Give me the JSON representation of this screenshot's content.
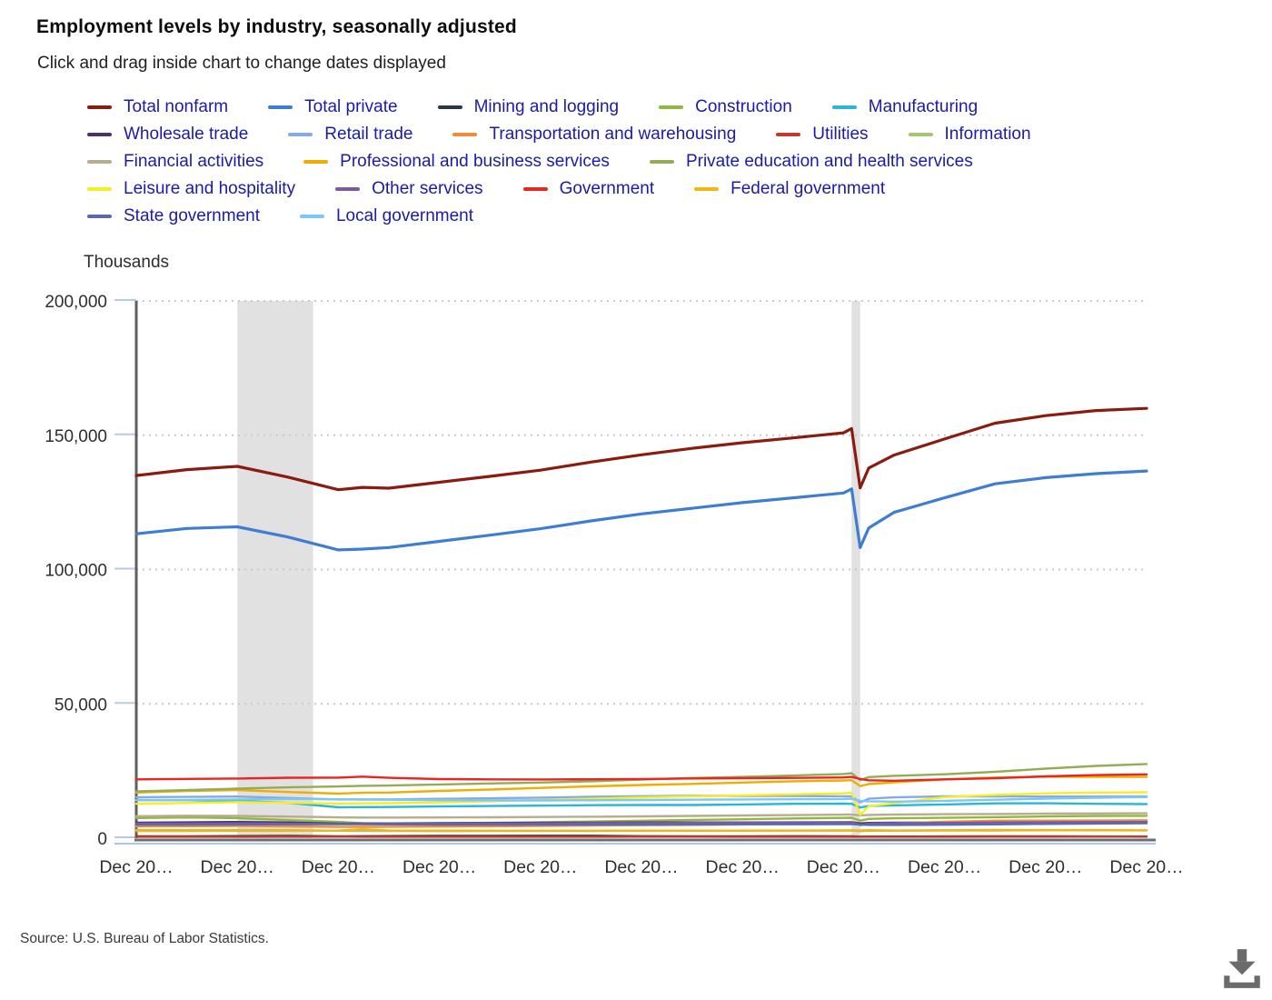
{
  "header": {
    "title": "Employment levels by industry, seasonally adjusted",
    "subtitle": "Click and drag inside chart to change dates displayed"
  },
  "footer": {
    "source": "Source: U.S. Bureau of Labor Statistics."
  },
  "icons": {
    "download": "download-arrow-with-tray"
  },
  "chart_data": {
    "type": "line",
    "unit": "Thousands",
    "legend_text_color": "#1b1ba6",
    "grid": "dotted-horizontal",
    "legend_position": "top-left",
    "xlim": [
      2005.92,
      2025.92
    ],
    "ylim": [
      0,
      200000
    ],
    "yticks": [
      {
        "v": 0,
        "label": "0"
      },
      {
        "v": 50000,
        "label": "50,000"
      },
      {
        "v": 100000,
        "label": "100,000"
      },
      {
        "v": 150000,
        "label": "150,000"
      },
      {
        "v": 200000,
        "label": "200,000"
      }
    ],
    "xtick_labels": [
      "Dec 20…",
      "Dec 20…",
      "Dec 20…",
      "Dec 20…",
      "Dec 20…",
      "Dec 20…",
      "Dec 20…",
      "Dec 20…",
      "Dec 20…",
      "Dec 20…",
      "Dec 20…"
    ],
    "recessions": [
      [
        2007.92,
        2009.42
      ],
      [
        2020.08,
        2020.25
      ]
    ],
    "recession_band_color": "#e1e1e1",
    "x": [
      2005.92,
      2006.92,
      2007.92,
      2008.92,
      2009.92,
      2010.4,
      2010.92,
      2011.92,
      2012.92,
      2013.92,
      2014.92,
      2015.92,
      2016.92,
      2017.92,
      2018.92,
      2019.92,
      2020.08,
      2020.25,
      2020.42,
      2020.92,
      2021.92,
      2022.92,
      2023.92,
      2024.92,
      2025.92
    ],
    "series": [
      {
        "name": "Total nonfarm",
        "color": "#8b1a10",
        "width": 3.2,
        "values": [
          135000,
          137200,
          138400,
          134400,
          129700,
          130600,
          130300,
          132500,
          134700,
          137000,
          140000,
          142700,
          145100,
          147200,
          149000,
          150900,
          152500,
          130400,
          137800,
          142600,
          148600,
          154500,
          157300,
          159200,
          160000
        ]
      },
      {
        "name": "Total private",
        "color": "#3e7dd1",
        "width": 3.2,
        "values": [
          113300,
          115300,
          115900,
          112100,
          107300,
          107600,
          108200,
          110500,
          112800,
          115200,
          118100,
          120700,
          122800,
          124900,
          126700,
          128500,
          130000,
          108200,
          115500,
          121300,
          126700,
          131900,
          134200,
          135700,
          136700
        ]
      },
      {
        "name": "Mining and logging",
        "color": "#2a3747",
        "width": 2.4,
        "values": [
          680,
          720,
          770,
          850,
          680,
          730,
          790,
          850,
          870,
          900,
          900,
          730,
          670,
          710,
          750,
          710,
          700,
          590,
          610,
          600,
          640,
          680,
          660,
          630,
          600
        ]
      },
      {
        "name": "Construction",
        "color": "#92b73e",
        "width": 2.4,
        "values": [
          7500,
          7700,
          7490,
          6750,
          6050,
          5580,
          5520,
          5620,
          5730,
          5940,
          6200,
          6500,
          6800,
          7040,
          7330,
          7540,
          7620,
          6520,
          7180,
          7400,
          7580,
          7820,
          8100,
          8300,
          8320
        ]
      },
      {
        "name": "Manufacturing",
        "color": "#29b6d8",
        "width": 2.4,
        "values": [
          14200,
          14150,
          13850,
          13180,
          11500,
          11560,
          11600,
          11800,
          11980,
          12100,
          12300,
          12350,
          12350,
          12550,
          12800,
          12850,
          12800,
          11400,
          11970,
          12200,
          12550,
          12950,
          13000,
          12800,
          12700
        ]
      },
      {
        "name": "Wholesale trade",
        "color": "#4d3263",
        "width": 2.4,
        "values": [
          5760,
          5900,
          6010,
          5850,
          5450,
          5440,
          5450,
          5540,
          5650,
          5720,
          5800,
          5840,
          5850,
          5870,
          5880,
          5900,
          5920,
          5500,
          5680,
          5750,
          5850,
          6000,
          6100,
          6150,
          6200
        ]
      },
      {
        "name": "Retail trade",
        "color": "#88a9e4",
        "width": 2.4,
        "values": [
          15250,
          15380,
          15500,
          14950,
          14400,
          14440,
          14450,
          14650,
          14850,
          15100,
          15400,
          15650,
          15800,
          15750,
          15700,
          15600,
          15600,
          13300,
          14700,
          15180,
          15600,
          15520,
          15500,
          15500,
          15520
        ]
      },
      {
        "name": "Transportation and warehousing",
        "color": "#f08c3a",
        "width": 2.4,
        "values": [
          4350,
          4470,
          4550,
          4390,
          4180,
          4230,
          4260,
          4340,
          4450,
          4550,
          4750,
          4850,
          4950,
          5100,
          5350,
          5500,
          5520,
          4900,
          5100,
          5500,
          6100,
          6500,
          6520,
          6580,
          6680
        ]
      },
      {
        "name": "Utilities",
        "color": "#c03a2e",
        "width": 2.4,
        "values": [
          550,
          550,
          550,
          560,
          560,
          550,
          550,
          550,
          550,
          550,
          550,
          560,
          560,
          550,
          550,
          550,
          550,
          540,
          540,
          540,
          550,
          570,
          590,
          600,
          610
        ]
      },
      {
        "name": "Information",
        "color": "#a5c573",
        "width": 2.4,
        "values": [
          3050,
          3030,
          3030,
          2980,
          2780,
          2710,
          2670,
          2650,
          2680,
          2700,
          2740,
          2780,
          2800,
          2810,
          2840,
          2870,
          2880,
          2600,
          2750,
          2820,
          2940,
          3090,
          3020,
          2960,
          2920
        ]
      },
      {
        "name": "Financial activities",
        "color": "#b5ad8e",
        "width": 2.4,
        "values": [
          8200,
          8350,
          8300,
          8050,
          7750,
          7680,
          7670,
          7720,
          7790,
          7890,
          8000,
          8120,
          8280,
          8450,
          8580,
          8750,
          8800,
          8480,
          8680,
          8800,
          8920,
          9010,
          9140,
          9200,
          9260
        ]
      },
      {
        "name": "Professional and business services",
        "color": "#f0ac00",
        "width": 2.4,
        "values": [
          17000,
          17600,
          17900,
          17200,
          16570,
          16950,
          17000,
          17600,
          18100,
          18700,
          19300,
          19800,
          20200,
          20700,
          21200,
          21500,
          21600,
          19400,
          20150,
          20800,
          21900,
          22600,
          22900,
          22850,
          22800
        ]
      },
      {
        "name": "Private education and health services",
        "color": "#93ac55",
        "width": 2.4,
        "values": [
          17400,
          17900,
          18430,
          18910,
          19250,
          19500,
          19600,
          20000,
          20360,
          20700,
          21200,
          21800,
          22400,
          22800,
          23300,
          23900,
          24200,
          21600,
          22750,
          23200,
          23800,
          24700,
          25900,
          26900,
          27600
        ]
      },
      {
        "name": "Leisure and hospitality",
        "color": "#f6ee20",
        "width": 2.4,
        "values": [
          12800,
          13110,
          13430,
          13170,
          12900,
          12960,
          13020,
          13330,
          13740,
          14200,
          14700,
          15200,
          15600,
          15950,
          16300,
          16680,
          16900,
          8700,
          11900,
          13000,
          15300,
          16100,
          16700,
          17000,
          17100
        ]
      },
      {
        "name": "Other services",
        "color": "#7c59a4",
        "width": 2.4,
        "values": [
          5400,
          5440,
          5500,
          5380,
          5270,
          5290,
          5300,
          5360,
          5430,
          5500,
          5580,
          5640,
          5700,
          5780,
          5870,
          5940,
          5950,
          4900,
          5450,
          5570,
          5700,
          5840,
          5930,
          5980,
          6020
        ]
      },
      {
        "name": "Government",
        "color": "#ea2420",
        "width": 2.4,
        "values": [
          21900,
          22050,
          22200,
          22500,
          22540,
          22900,
          22480,
          22000,
          21880,
          21850,
          21930,
          22030,
          22230,
          22330,
          22450,
          22600,
          22800,
          22050,
          21550,
          21400,
          21900,
          22300,
          23000,
          23500,
          23750
        ]
      },
      {
        "name": "Federal government",
        "color": "#f6b40e",
        "width": 2.4,
        "values": [
          2720,
          2720,
          2730,
          2760,
          2830,
          3350,
          2850,
          2810,
          2790,
          2760,
          2750,
          2760,
          2790,
          2800,
          2820,
          2850,
          2870,
          2920,
          2990,
          2850,
          2860,
          2870,
          2950,
          3000,
          2900
        ]
      },
      {
        "name": "State government",
        "color": "#5a69b0",
        "width": 2.4,
        "values": [
          5050,
          5080,
          5120,
          5180,
          5200,
          5230,
          5130,
          5080,
          5050,
          5050,
          5080,
          5100,
          5150,
          5170,
          5180,
          5200,
          5210,
          5100,
          4950,
          4950,
          5000,
          5150,
          5300,
          5450,
          5550
        ]
      },
      {
        "name": "Local government",
        "color": "#7cc7f4",
        "width": 2.4,
        "values": [
          14100,
          14250,
          14400,
          14580,
          14500,
          14350,
          14300,
          14150,
          14100,
          14050,
          14100,
          14200,
          14300,
          14400,
          14500,
          14600,
          14700,
          13900,
          13750,
          13600,
          13900,
          14300,
          14700,
          15050,
          15300
        ]
      }
    ]
  }
}
